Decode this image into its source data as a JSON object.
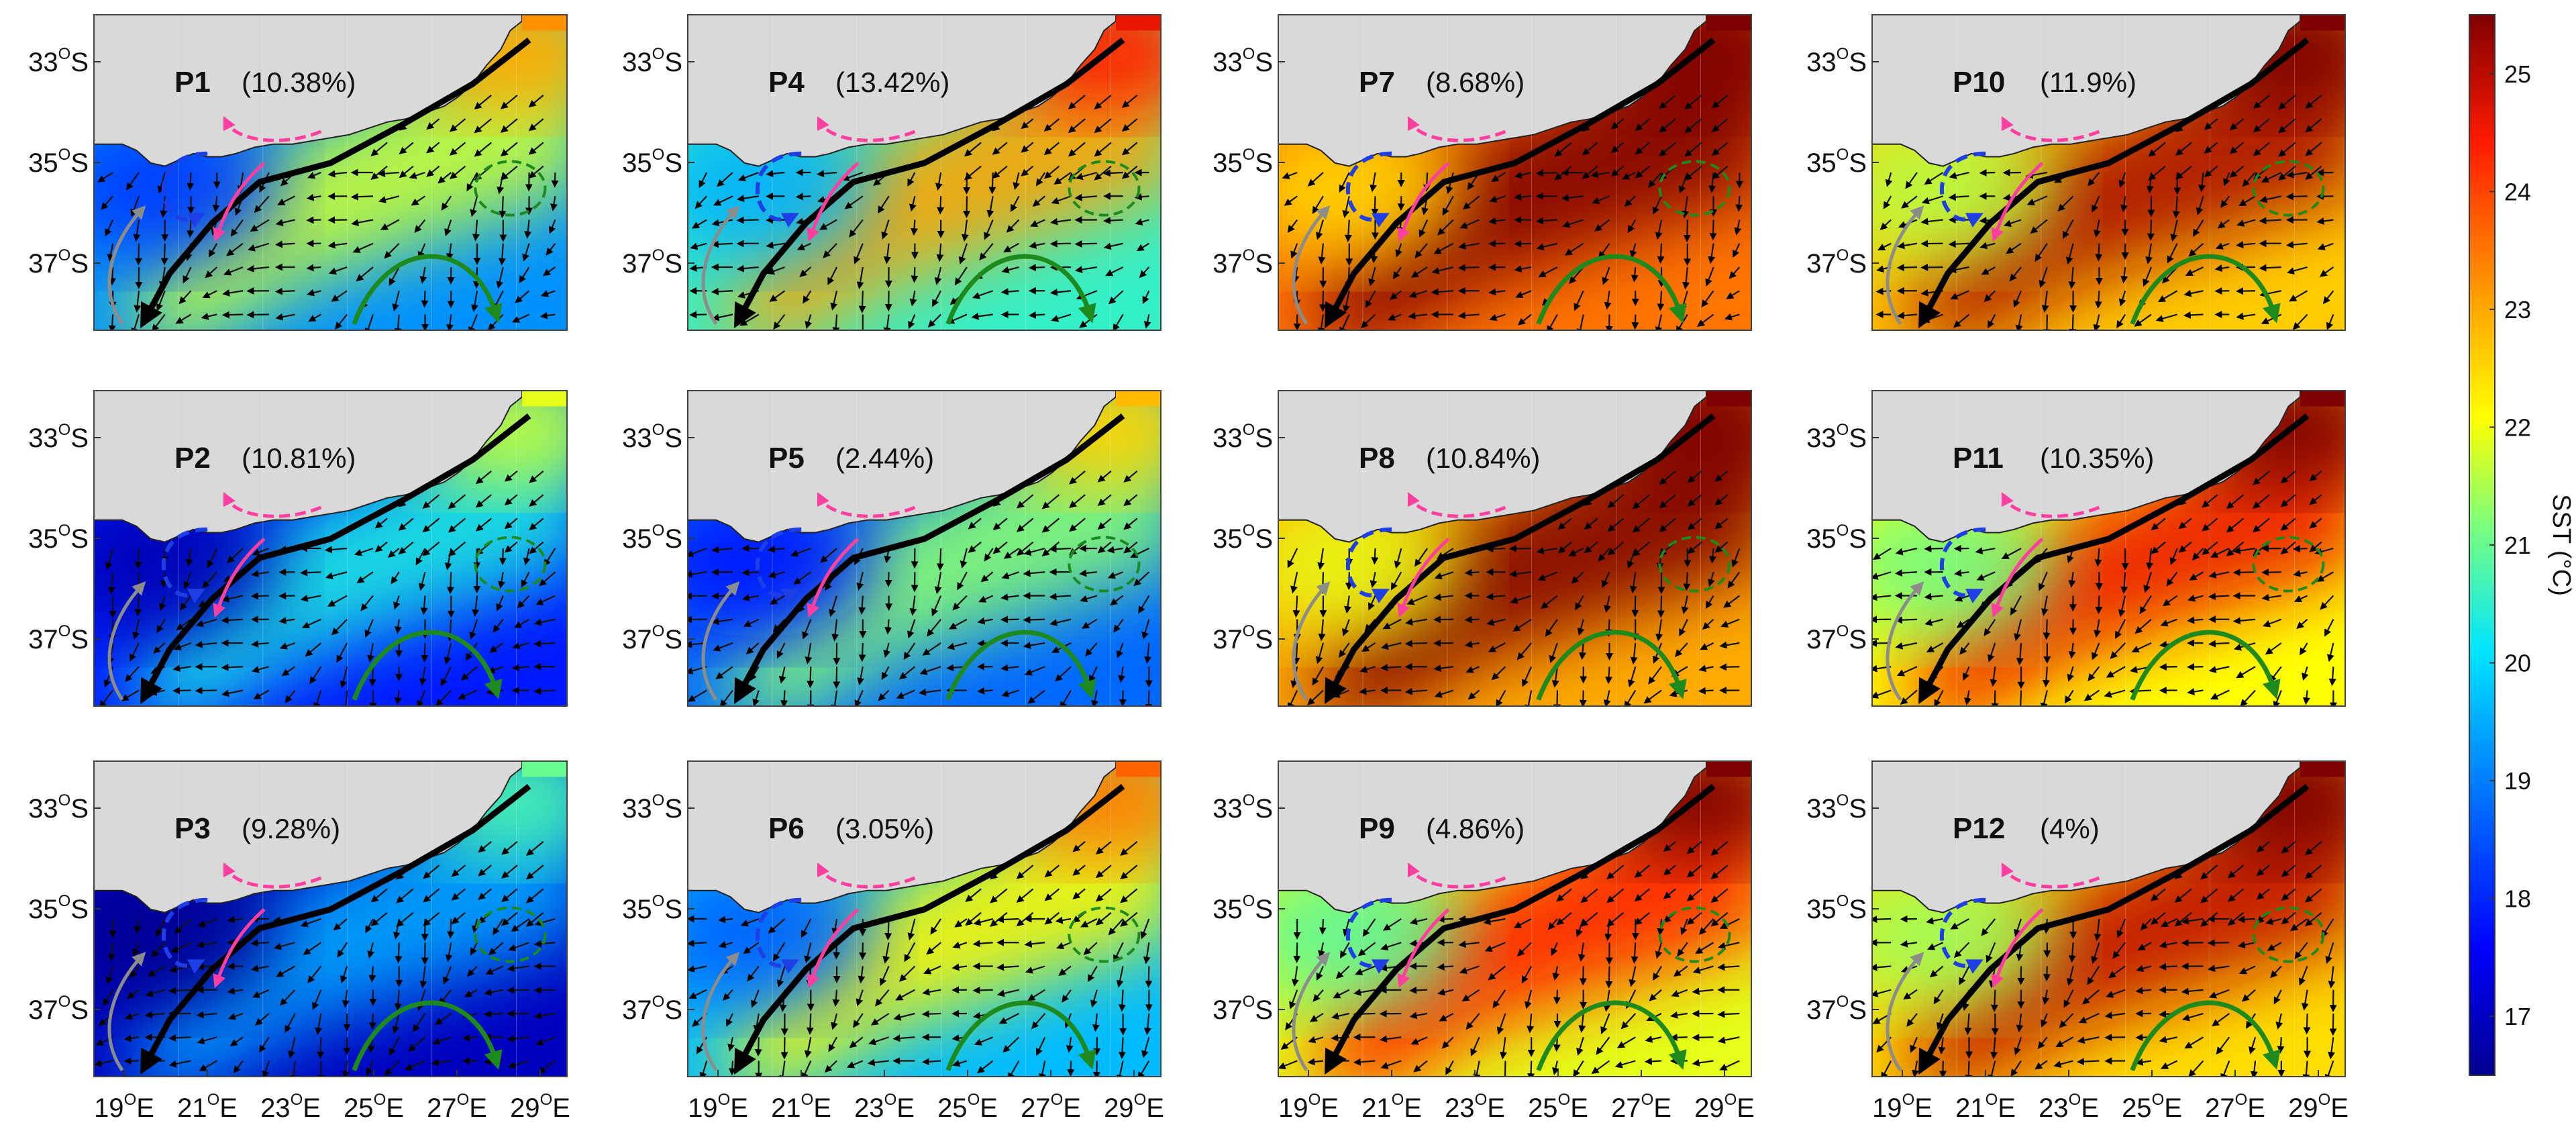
{
  "figure": {
    "panels": [
      {
        "id": "P1",
        "label": "P1",
        "percent": "(10.38%)",
        "sst_level": 0.3
      },
      {
        "id": "P2",
        "label": "P2",
        "percent": "(10.81%)",
        "sst_level": 0.15
      },
      {
        "id": "P3",
        "label": "P3",
        "percent": "(9.28%)",
        "sst_level": 0.05
      },
      {
        "id": "P4",
        "label": "P4",
        "percent": "(13.42%)",
        "sst_level": 0.45
      },
      {
        "id": "P5",
        "label": "P5",
        "percent": "(2.44%)",
        "sst_level": 0.25
      },
      {
        "id": "P6",
        "label": "P6",
        "percent": "(3.05%)",
        "sst_level": 0.35
      },
      {
        "id": "P7",
        "label": "P7",
        "percent": "(8.68%)",
        "sst_level": 0.78
      },
      {
        "id": "P8",
        "label": "P8",
        "percent": "(10.84%)",
        "sst_level": 0.72
      },
      {
        "id": "P9",
        "label": "P9",
        "percent": "(4.86%)",
        "sst_level": 0.6
      },
      {
        "id": "P10",
        "label": "P10",
        "percent": "(11.9%)",
        "sst_level": 0.68
      },
      {
        "id": "P11",
        "label": "P11",
        "percent": "(10.35%)",
        "sst_level": 0.62
      },
      {
        "id": "P12",
        "label": "P12",
        "percent": "(4%)",
        "sst_level": 0.66
      }
    ],
    "lat_ticks": [
      "33",
      "35",
      "37"
    ],
    "lat_suffix": "S",
    "lon_ticks": [
      "19",
      "21",
      "23",
      "25",
      "27",
      "29"
    ],
    "lon_suffix": "E",
    "degree_symbol": "O",
    "colorbar": {
      "label": "SST (°C)",
      "ticks": [
        "25",
        "24",
        "23",
        "22",
        "21",
        "20",
        "19",
        "18",
        "17"
      ],
      "range": [
        16.5,
        25.5
      ]
    },
    "colors": {
      "land": "#d9d9d9",
      "current_core": "#000000",
      "pink": "#ff3fa0",
      "blue": "#1e3fe6",
      "green": "#1e8a1e",
      "gray": "#8c8c8c"
    }
  }
}
